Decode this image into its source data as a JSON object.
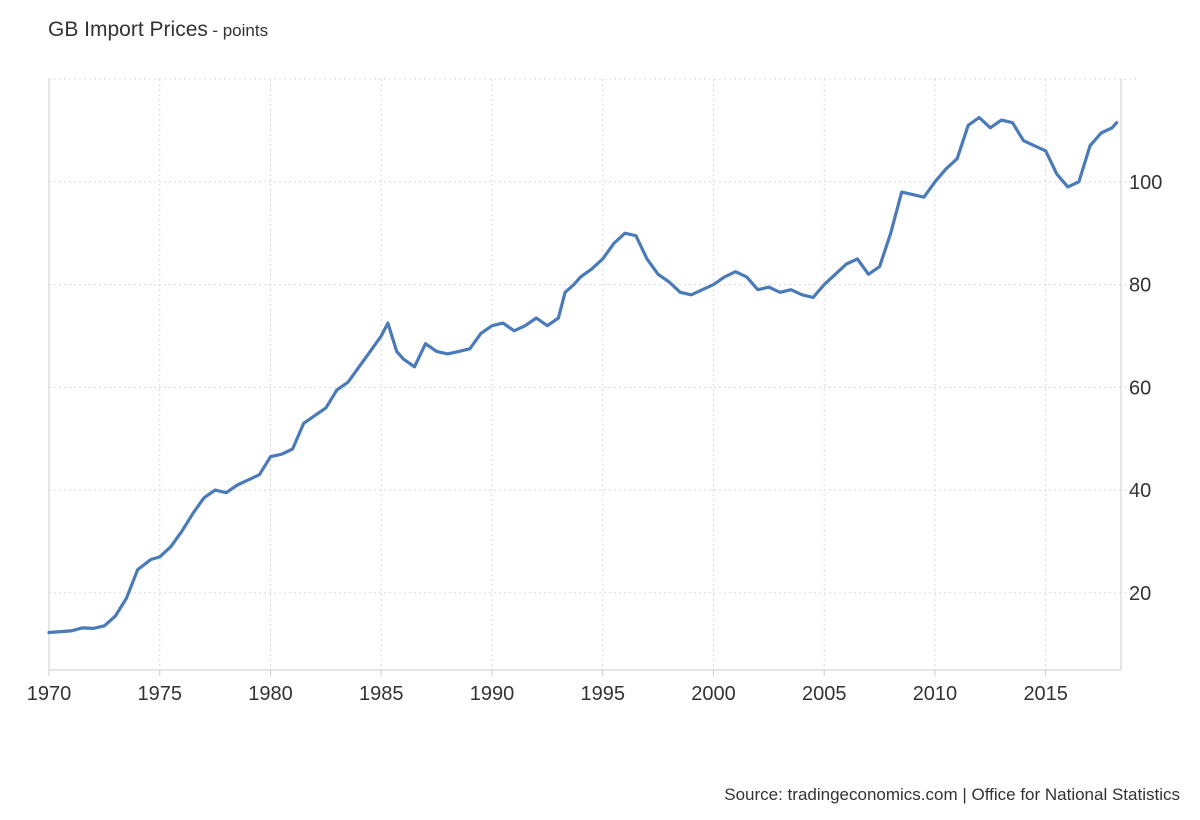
{
  "chart_data": {
    "type": "line",
    "title": "GB Import Prices",
    "subtitle": "- points",
    "xlabel": "",
    "ylabel": "",
    "xlim": [
      1970,
      2018.4
    ],
    "ylim": [
      5,
      120
    ],
    "x_ticks": [
      1970,
      1975,
      1980,
      1985,
      1990,
      1995,
      2000,
      2005,
      2010,
      2015
    ],
    "y_ticks": [
      20,
      40,
      60,
      80,
      100
    ],
    "y_axis_position": "right",
    "grid": true,
    "legend": "none",
    "line_color": "#4a7ab8",
    "series": [
      {
        "x": [
          1970.0,
          1971.0,
          1971.5,
          1972.0,
          1972.5,
          1973.0,
          1973.5,
          1974.0,
          1974.3,
          1974.6,
          1975.0,
          1975.5,
          1976.0,
          1976.5,
          1977.0,
          1977.5,
          1978.0,
          1978.5,
          1979.0,
          1979.5,
          1980.0,
          1980.5,
          1981.0,
          1981.5,
          1982.0,
          1982.5,
          1983.0,
          1983.5,
          1984.0,
          1984.5,
          1985.0,
          1985.3,
          1985.7,
          1986.0,
          1986.5,
          1987.0,
          1987.5,
          1988.0,
          1988.5,
          1989.0,
          1989.5,
          1990.0,
          1990.5,
          1991.0,
          1991.5,
          1992.0,
          1992.5,
          1993.0,
          1993.3,
          1993.7,
          1994.0,
          1994.5,
          1995.0,
          1995.5,
          1996.0,
          1996.5,
          1997.0,
          1997.5,
          1998.0,
          1998.5,
          1999.0,
          1999.5,
          2000.0,
          2000.5,
          2001.0,
          2001.5,
          2002.0,
          2002.5,
          2003.0,
          2003.5,
          2004.0,
          2004.5,
          2005.0,
          2005.5,
          2006.0,
          2006.5,
          2007.0,
          2007.5,
          2008.0,
          2008.5,
          2009.0,
          2009.5,
          2010.0,
          2010.5,
          2011.0,
          2011.5,
          2012.0,
          2012.5,
          2013.0,
          2013.5,
          2014.0,
          2014.5,
          2015.0,
          2015.5,
          2016.0,
          2016.5,
          2017.0,
          2017.5,
          2018.0,
          2018.2
        ],
        "y": [
          12.3,
          12.6,
          13.2,
          13.1,
          13.6,
          15.5,
          19.0,
          24.5,
          25.5,
          26.5,
          27.0,
          29.0,
          32.0,
          35.5,
          38.5,
          40.0,
          39.5,
          41.0,
          42.0,
          43.0,
          46.5,
          47.0,
          48.0,
          53.0,
          54.5,
          56.0,
          59.5,
          61.0,
          64.0,
          67.0,
          70.0,
          72.5,
          67.0,
          65.5,
          64.0,
          68.5,
          67.0,
          66.5,
          67.0,
          67.5,
          70.5,
          72.0,
          72.5,
          71.0,
          72.0,
          73.5,
          72.0,
          73.5,
          78.5,
          80.0,
          81.5,
          83.0,
          85.0,
          88.0,
          90.0,
          89.5,
          85.0,
          82.0,
          80.5,
          78.5,
          78.0,
          79.0,
          80.0,
          81.5,
          82.5,
          81.5,
          79.0,
          79.5,
          78.5,
          79.0,
          78.0,
          77.5,
          80.0,
          82.0,
          84.0,
          85.0,
          82.0,
          83.5,
          90.0,
          98.0,
          97.5,
          97.0,
          100.0,
          102.5,
          104.5,
          111.0,
          112.5,
          110.5,
          112.0,
          111.5,
          108.0,
          107.0,
          106.0,
          101.5,
          99.0,
          100.0,
          107.0,
          109.5,
          110.5,
          111.5
        ]
      }
    ]
  },
  "footer": {
    "source": "Source: tradingeconomics.com | Office for National Statistics"
  }
}
